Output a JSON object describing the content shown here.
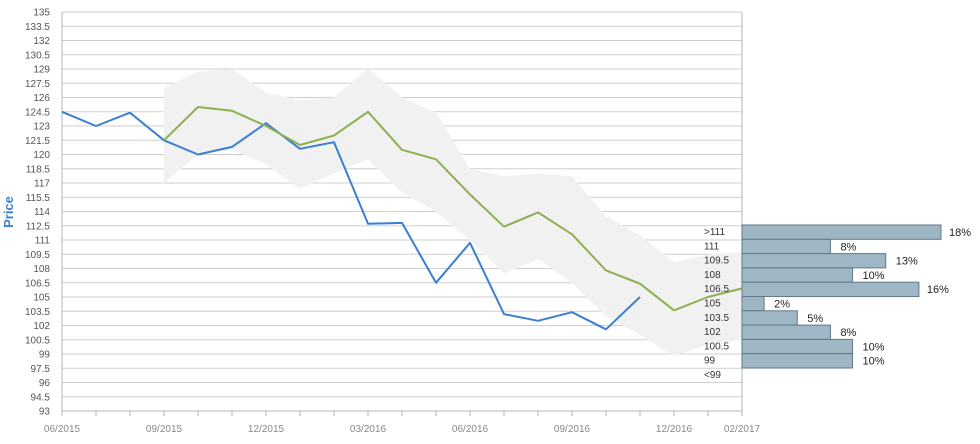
{
  "chart_data": {
    "type": "line",
    "ylabel": "Price",
    "ylim": [
      93,
      135
    ],
    "y_ticks": [
      "135",
      "133.5",
      "132",
      "130.5",
      "129",
      "127.5",
      "126",
      "124.5",
      "123",
      "121.5",
      "120",
      "118.5",
      "117",
      "115.5",
      "114",
      "112.5",
      "111",
      "109.5",
      "108",
      "106.5",
      "105",
      "103.5",
      "102",
      "100.5",
      "99",
      "97.5",
      "96",
      "94.5",
      "93"
    ],
    "x_tick_labels": [
      "06/2015",
      "09/2015",
      "12/2015",
      "03/2016",
      "06/2016",
      "09/2016",
      "12/2016",
      "02/2017"
    ],
    "series": [
      {
        "role": "price",
        "color": "#3a7fd0",
        "x": [
          "06/2015",
          "07/2015",
          "08/2015",
          "09/2015",
          "10/2015",
          "11/2015",
          "12/2015",
          "01/2016",
          "02/2016",
          "03/2016",
          "04/2016",
          "05/2016",
          "06/2016",
          "07/2016",
          "08/2016",
          "09/2016",
          "10/2016",
          "11/2016"
        ],
        "values": [
          124.5,
          123.0,
          124.4,
          121.5,
          120.0,
          120.8,
          123.3,
          120.6,
          121.3,
          112.7,
          112.8,
          106.5,
          110.7,
          103.2,
          102.5,
          103.4,
          101.6,
          105.0
        ]
      },
      {
        "role": "forecast",
        "color": "#8db050",
        "x": [
          "09/2015",
          "10/2015",
          "11/2015",
          "12/2015",
          "01/2016",
          "02/2016",
          "03/2016",
          "04/2016",
          "05/2016",
          "06/2016",
          "07/2016",
          "08/2016",
          "09/2016",
          "10/2016",
          "11/2016",
          "12/2016",
          "01/2017",
          "02/2017"
        ],
        "values": [
          121.5,
          125.0,
          124.6,
          123.0,
          121.0,
          122.0,
          124.5,
          120.5,
          119.5,
          115.8,
          112.4,
          113.9,
          111.6,
          107.8,
          106.4,
          103.6,
          105.0,
          105.9
        ]
      }
    ],
    "band": {
      "color": "#f1f1f1",
      "x": [
        "09/2015",
        "10/2015",
        "11/2015",
        "12/2015",
        "01/2016",
        "02/2016",
        "03/2016",
        "04/2016",
        "05/2016",
        "06/2016",
        "07/2016",
        "08/2016",
        "09/2016",
        "10/2016",
        "11/2016",
        "12/2016",
        "01/2017",
        "02/2017"
      ],
      "upper": [
        127.0,
        128.7,
        129.0,
        126.5,
        125.7,
        126.0,
        129.0,
        126.0,
        124.4,
        118.5,
        117.7,
        118.0,
        117.7,
        113.5,
        111.5,
        108.6,
        109.5,
        109.7
      ],
      "lower": [
        117.0,
        120.0,
        120.5,
        119.0,
        116.4,
        118.0,
        119.5,
        116.0,
        114.0,
        111.0,
        107.5,
        109.0,
        106.5,
        103.0,
        101.0,
        98.8,
        100.0,
        100.5
      ]
    },
    "histogram": {
      "color": "#9fb6c4",
      "bins": [
        {
          "label": ">111",
          "pct": "18%",
          "value": 18
        },
        {
          "label": "111",
          "pct": "8%",
          "value": 8
        },
        {
          "label": "109.5",
          "pct": "13%",
          "value": 13
        },
        {
          "label": "108",
          "pct": "10%",
          "value": 10
        },
        {
          "label": "106.5",
          "pct": "16%",
          "value": 16
        },
        {
          "label": "105",
          "pct": "2%",
          "value": 2
        },
        {
          "label": "103.5",
          "pct": "5%",
          "value": 5
        },
        {
          "label": "102",
          "pct": "8%",
          "value": 8
        },
        {
          "label": "100.5",
          "pct": "10%",
          "value": 10
        },
        {
          "label": "99",
          "pct": "10%",
          "value": 10
        },
        {
          "label": "<99",
          "pct": "",
          "value": 0
        }
      ]
    },
    "grid": true
  }
}
